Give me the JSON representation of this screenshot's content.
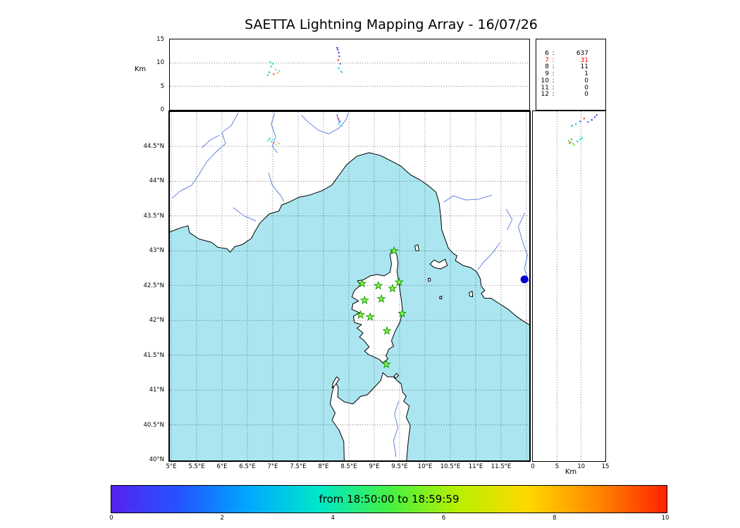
{
  "title": "SAETTA Lightning Mapping Array - 16/07/26",
  "top_panel": {
    "ylabel": "Km",
    "yticks": [
      "15",
      "10",
      "5",
      "0"
    ]
  },
  "right_panel": {
    "xlabel": "Km",
    "xticks": [
      "0",
      "5",
      "10",
      "15"
    ]
  },
  "map_panel": {
    "lat_ticks": [
      "44.5°N",
      "44°N",
      "43.5°N",
      "43°N",
      "42.5°N",
      "42°N",
      "41.5°N",
      "41°N",
      "40.5°N",
      "40°N"
    ],
    "lon_ticks": [
      "5°E",
      "5.5°E",
      "6°E",
      "6.5°E",
      "7°E",
      "7.5°E",
      "8°E",
      "8.5°E",
      "9°E",
      "9.5°E",
      "10°E",
      "10.5°E",
      "11°E",
      "11.5°E"
    ]
  },
  "stats_panel": {
    "highlight_level": "7",
    "rows": [
      {
        "level": "6",
        "count": "637"
      },
      {
        "level": "7",
        "count": "31"
      },
      {
        "level": "8",
        "count": "11"
      },
      {
        "level": "9",
        "count": "1"
      },
      {
        "level": "10",
        "count": "0"
      },
      {
        "level": "11",
        "count": "0"
      },
      {
        "level": "12",
        "count": "0"
      }
    ]
  },
  "colorbar": {
    "label": "from 18:50:00 to 18:59:59",
    "ticks": [
      "0",
      "2",
      "4",
      "6",
      "8",
      "10"
    ],
    "colormap_stops": [
      "#5522ee",
      "#2255ff",
      "#00aaff",
      "#00e8c8",
      "#44f044",
      "#b8f000",
      "#ffd800",
      "#ff8800",
      "#ff2200"
    ]
  },
  "colors": {
    "sea": "#abe6f0",
    "land": "#ffffff",
    "coast": "#000000",
    "river": "#5577dd",
    "lake": "#0000cc",
    "station_fill": "#99ee44",
    "station_edge": "#009900",
    "highlight": "#ff0000"
  },
  "chart_data": {
    "type": "scatter",
    "title": "SAETTA Lightning Mapping Array - 16/07/26",
    "panels": {
      "top": {
        "x": "longitude_deg_E",
        "y": "altitude_km",
        "ylim": [
          0,
          15
        ],
        "grid": "dotted at 5,10 km"
      },
      "map": {
        "x": "longitude_deg_E",
        "y": "latitude_deg_N",
        "xlim": [
          5,
          12.06
        ],
        "ylim": [
          40,
          45
        ],
        "grid": "dotted every 0.5 deg"
      },
      "right": {
        "x": "altitude_km",
        "y": "latitude_deg_N",
        "xlim": [
          0,
          15
        ],
        "grid": "dotted at 5,10 km"
      }
    },
    "station_count_histogram": {
      "levels": [
        "6",
        "7",
        "8",
        "9",
        "10",
        "11",
        "12"
      ],
      "counts": [
        637,
        31,
        11,
        1,
        0,
        0,
        0
      ],
      "highlight_level": "7"
    },
    "stations_lon_lat": [
      [
        9.39,
        43.0
      ],
      [
        8.76,
        42.53
      ],
      [
        9.08,
        42.5
      ],
      [
        9.36,
        42.46
      ],
      [
        9.49,
        42.55
      ],
      [
        8.81,
        42.29
      ],
      [
        9.14,
        42.31
      ],
      [
        8.73,
        42.08
      ],
      [
        8.92,
        42.05
      ],
      [
        9.55,
        42.1
      ],
      [
        9.25,
        41.85
      ],
      [
        9.24,
        41.37
      ]
    ],
    "sources": [
      {
        "lon": 6.93,
        "lat": 44.6,
        "alt": 8.0,
        "c": "#00cc66"
      },
      {
        "lon": 6.97,
        "lat": 44.57,
        "alt": 9.2,
        "c": "#00ccee"
      },
      {
        "lon": 7.02,
        "lat": 44.55,
        "alt": 7.6,
        "c": "#ff3322"
      },
      {
        "lon": 7.06,
        "lat": 44.52,
        "alt": 8.6,
        "c": "#88ee22"
      },
      {
        "lon": 7.1,
        "lat": 44.56,
        "alt": 7.9,
        "c": "#ffaa00"
      },
      {
        "lon": 7.0,
        "lat": 44.6,
        "alt": 9.8,
        "c": "#00e8c8"
      },
      {
        "lon": 7.13,
        "lat": 44.54,
        "alt": 8.3,
        "c": "#55ccff"
      },
      {
        "lon": 6.9,
        "lat": 44.58,
        "alt": 7.4,
        "c": "#44dd44"
      },
      {
        "lon": 6.95,
        "lat": 44.62,
        "alt": 10.2,
        "c": "#22ee99"
      },
      {
        "lon": 8.28,
        "lat": 44.92,
        "alt": 12.8,
        "c": "#3344ff"
      },
      {
        "lon": 8.3,
        "lat": 44.88,
        "alt": 12.2,
        "c": "#2233ee"
      },
      {
        "lon": 8.31,
        "lat": 44.85,
        "alt": 11.4,
        "c": "#4455ff"
      },
      {
        "lon": 8.29,
        "lat": 44.9,
        "alt": 10.6,
        "c": "#ff2200"
      },
      {
        "lon": 8.33,
        "lat": 44.86,
        "alt": 9.8,
        "c": "#3366ff"
      },
      {
        "lon": 8.3,
        "lat": 44.82,
        "alt": 8.9,
        "c": "#00bbee"
      },
      {
        "lon": 8.35,
        "lat": 44.8,
        "alt": 8.2,
        "c": "#44ccee"
      },
      {
        "lon": 8.27,
        "lat": 44.95,
        "alt": 13.2,
        "c": "#5522ee"
      },
      {
        "lon": 8.36,
        "lat": 44.79,
        "alt": 8.0,
        "c": "#33ddcc"
      }
    ],
    "colorbar_range": [
      0,
      10
    ]
  }
}
